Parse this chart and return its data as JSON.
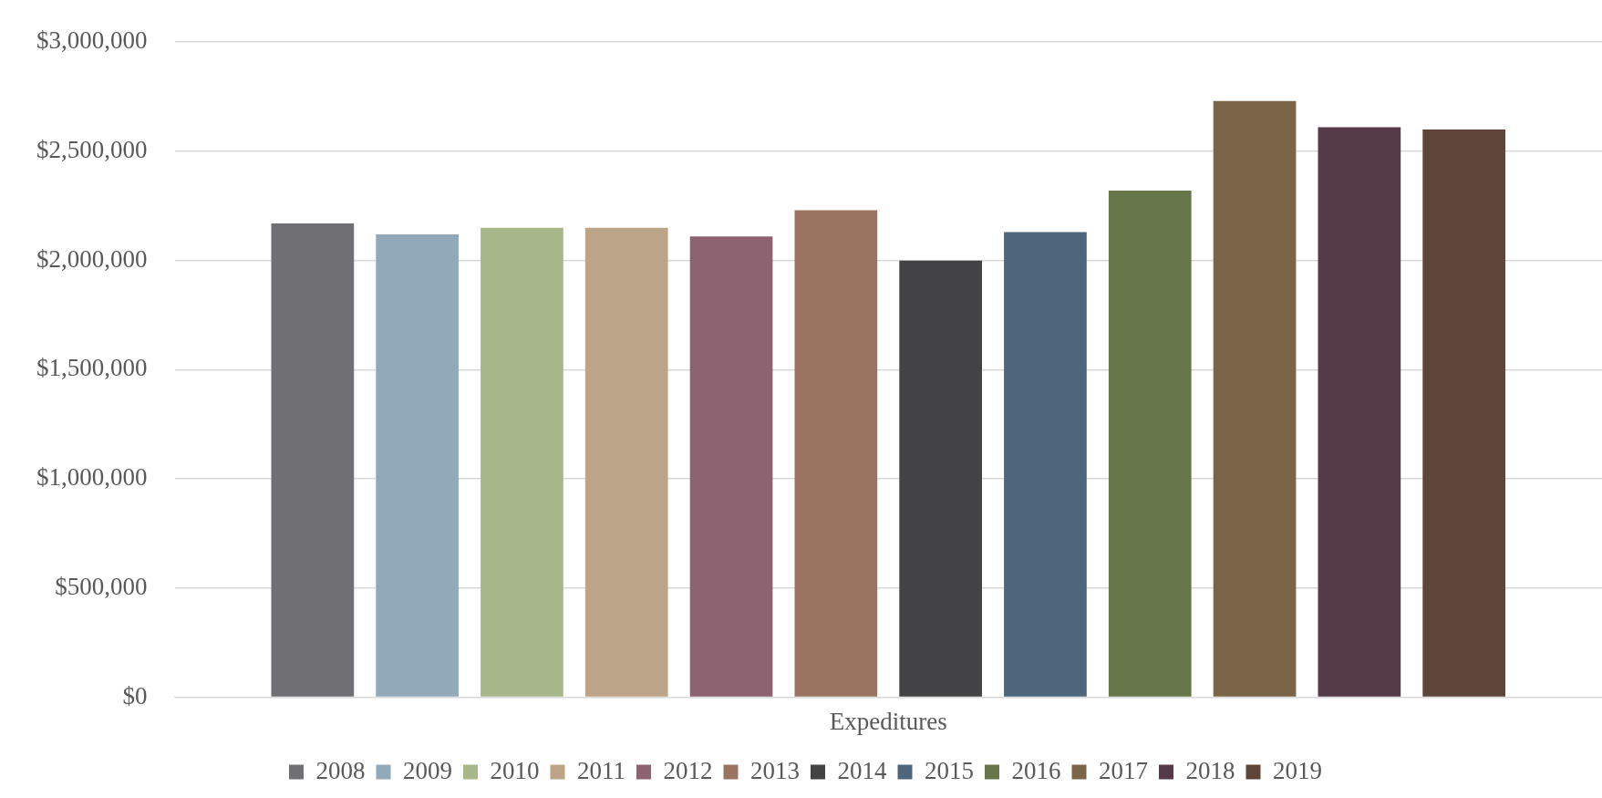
{
  "chart_data": {
    "type": "bar",
    "categories": [
      "Expeditures"
    ],
    "series": [
      {
        "name": "2008",
        "color": "#706f74",
        "values": [
          2170000
        ]
      },
      {
        "name": "2009",
        "color": "#91a9b9",
        "values": [
          2120000
        ]
      },
      {
        "name": "2010",
        "color": "#a7b789",
        "values": [
          2150000
        ]
      },
      {
        "name": "2011",
        "color": "#bca488",
        "values": [
          2150000
        ]
      },
      {
        "name": "2012",
        "color": "#8d6271",
        "values": [
          2110000
        ]
      },
      {
        "name": "2013",
        "color": "#9b7461",
        "values": [
          2230000
        ]
      },
      {
        "name": "2014",
        "color": "#434345",
        "values": [
          2000000
        ]
      },
      {
        "name": "2015",
        "color": "#4e667c",
        "values": [
          2130000
        ]
      },
      {
        "name": "2016",
        "color": "#667649",
        "values": [
          2320000
        ]
      },
      {
        "name": "2017",
        "color": "#7b6548",
        "values": [
          2730000
        ]
      },
      {
        "name": "2018",
        "color": "#553b47",
        "values": [
          2610000
        ]
      },
      {
        "name": "2019",
        "color": "#5e453a",
        "values": [
          2600000
        ]
      }
    ],
    "ylim": [
      0,
      3000000
    ],
    "yticks": [
      {
        "value": 0,
        "label": "$0"
      },
      {
        "value": 500000,
        "label": "$500,000"
      },
      {
        "value": 1000000,
        "label": "$1,000,000"
      },
      {
        "value": 1500000,
        "label": "$1,500,000"
      },
      {
        "value": 2000000,
        "label": "$2,000,000"
      },
      {
        "value": 2500000,
        "label": "$2,500,000"
      },
      {
        "value": 3000000,
        "label": "$3,000,000"
      }
    ],
    "grid": "y",
    "legend": "bottom"
  }
}
